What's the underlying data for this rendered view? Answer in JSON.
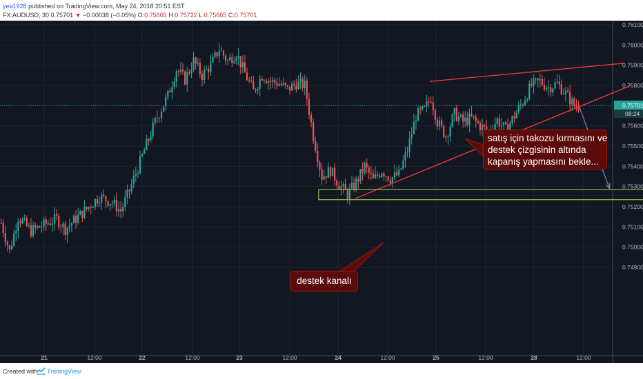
{
  "header": {
    "user": "yea1928",
    "published": "published on TradingView.com, May 24, 2018 20:51 EST",
    "symbol": "FX:AUDUSD, 30",
    "last": "0.75701",
    "arrow": "▼",
    "change": "−0.00038 (−0.05%)",
    "o_label": "O:",
    "o_value": "0.75665",
    "h_label": "H:",
    "h_value": "0.75722",
    "l_label": "L:",
    "l_value": "0.75665",
    "c_label": "C:",
    "c_value": "0.75701"
  },
  "footer": {
    "created_with": "Created with",
    "brand": "TradingView"
  },
  "callouts": {
    "main": [
      "satış için takozu kırmasını ve",
      "destek çizgisinin altında",
      "kapanış yapmasını bekle..."
    ],
    "support": "destek kanalı"
  },
  "colors": {
    "background": "#131722",
    "up": "#26a69a",
    "down": "#ef5350",
    "wedge": "#e53935",
    "support_box": "#8bc34a",
    "arrow": "#7f93c9",
    "price_tag": "#26a69a"
  },
  "chart_data": {
    "type": "candlestick",
    "symbol": "AUDUSD",
    "timeframe": "30",
    "x_ticks": [
      "21",
      "12:00",
      "22",
      "12:00",
      "23",
      "12:00",
      "24",
      "12:00",
      "25",
      "12:00",
      "28",
      "12:00"
    ],
    "y_ticks": [
      "0.76100",
      "0.76000",
      "0.75900",
      "0.75800",
      "0.75700",
      "0.75600",
      "0.75500",
      "0.75400",
      "0.75300",
      "0.75200",
      "0.75100",
      "0.75000",
      "0.74900"
    ],
    "ylim": [
      0.7482,
      0.7612
    ],
    "current_price": 0.75701,
    "current_price_label": "0.75701",
    "countdown": "08:24",
    "price_path": [
      [
        0,
        0.7512
      ],
      [
        4,
        0.7498
      ],
      [
        8,
        0.7515
      ],
      [
        14,
        0.7508
      ],
      [
        20,
        0.7511
      ],
      [
        26,
        0.7514
      ],
      [
        30,
        0.7509
      ],
      [
        34,
        0.7513
      ],
      [
        40,
        0.7519
      ],
      [
        46,
        0.7525
      ],
      [
        52,
        0.7522
      ],
      [
        56,
        0.7518
      ],
      [
        60,
        0.7528
      ],
      [
        66,
        0.7545
      ],
      [
        72,
        0.7562
      ],
      [
        78,
        0.7575
      ],
      [
        82,
        0.7588
      ],
      [
        86,
        0.7583
      ],
      [
        90,
        0.7592
      ],
      [
        94,
        0.7585
      ],
      [
        98,
        0.759
      ],
      [
        102,
        0.7598
      ],
      [
        106,
        0.7592
      ],
      [
        110,
        0.7596
      ],
      [
        114,
        0.7586
      ],
      [
        118,
        0.7577
      ],
      [
        122,
        0.7585
      ],
      [
        126,
        0.7582
      ],
      [
        130,
        0.7581
      ],
      [
        134,
        0.7578
      ],
      [
        138,
        0.7581
      ],
      [
        142,
        0.758
      ],
      [
        146,
        0.7555
      ],
      [
        150,
        0.7535
      ],
      [
        154,
        0.7538
      ],
      [
        158,
        0.7531
      ],
      [
        162,
        0.7526
      ],
      [
        166,
        0.7532
      ],
      [
        170,
        0.754
      ],
      [
        174,
        0.7533
      ],
      [
        178,
        0.7538
      ],
      [
        182,
        0.7534
      ],
      [
        186,
        0.7536
      ],
      [
        190,
        0.7548
      ],
      [
        194,
        0.7565
      ],
      [
        198,
        0.7568
      ],
      [
        201,
        0.7574
      ],
      [
        204,
        0.7562
      ],
      [
        208,
        0.7555
      ],
      [
        212,
        0.7566
      ],
      [
        216,
        0.7562
      ],
      [
        220,
        0.7564
      ],
      [
        224,
        0.756
      ],
      [
        228,
        0.7557
      ],
      [
        232,
        0.7563
      ],
      [
        236,
        0.7558
      ],
      [
        240,
        0.7565
      ],
      [
        244,
        0.7572
      ],
      [
        248,
        0.758
      ],
      [
        252,
        0.7582
      ],
      [
        256,
        0.7579
      ],
      [
        260,
        0.7581
      ],
      [
        264,
        0.7576
      ],
      [
        268,
        0.757
      ],
      [
        270,
        0.757
      ]
    ],
    "drawings": [
      {
        "type": "wedge-upper",
        "from": [
          201,
          0.7582
        ],
        "to": [
          292,
          0.7591
        ]
      },
      {
        "type": "wedge-lower",
        "from": [
          166,
          0.7524
        ],
        "to": [
          295,
          0.758
        ]
      },
      {
        "type": "support-box",
        "from": [
          149,
          0.75285
        ],
        "to": [
          346,
          0.75235
        ]
      },
      {
        "type": "projection-arrow",
        "from": [
          271,
          0.7569
        ],
        "to": [
          285,
          0.7529
        ]
      }
    ]
  }
}
